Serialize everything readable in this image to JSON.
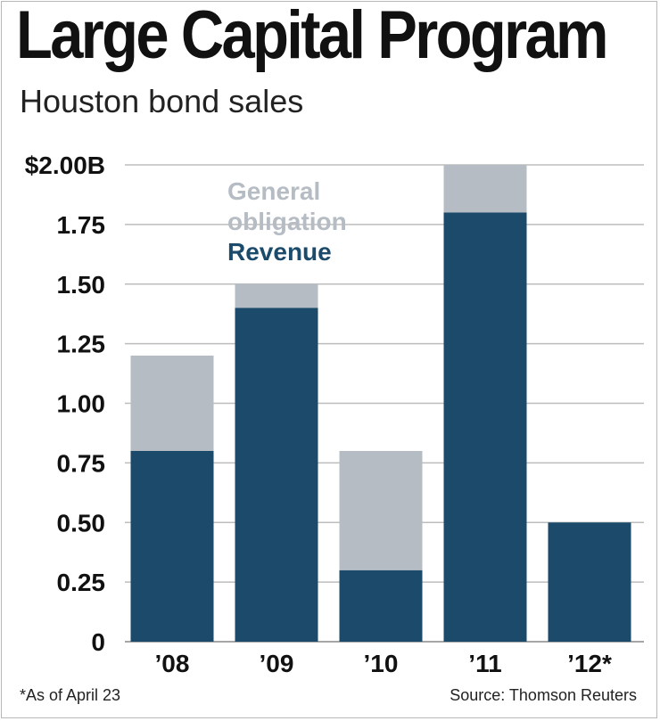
{
  "title": "Large Capital Program",
  "subtitle": "Houston bond sales",
  "footnote": "*As of April 23",
  "source": "Source: Thomson Reuters",
  "colors": {
    "general_obligation": "#b5bcc3",
    "revenue": "#1b4a6b",
    "gridline": "#bdbdbd",
    "text": "#111111"
  },
  "chart_data": {
    "type": "bar",
    "stacked": true,
    "categories": [
      "’08",
      "’09",
      "’10",
      "’11",
      "’12*"
    ],
    "series": [
      {
        "name": "Revenue",
        "values": [
          0.8,
          1.4,
          0.3,
          1.8,
          0.5
        ]
      },
      {
        "name": "General obligation",
        "values": [
          0.4,
          0.1,
          0.5,
          0.2,
          0.0
        ]
      }
    ],
    "y_tick_labels": [
      "0",
      "0.25",
      "0.50",
      "0.75",
      "1.00",
      "1.25",
      "1.50",
      "1.75",
      "$2.00B"
    ],
    "ylim": [
      0,
      2.0
    ],
    "grid": true,
    "legend_position": "top-left",
    "legend": {
      "general_obligation_lines": [
        "General",
        "obligation"
      ],
      "revenue": "Revenue"
    }
  }
}
